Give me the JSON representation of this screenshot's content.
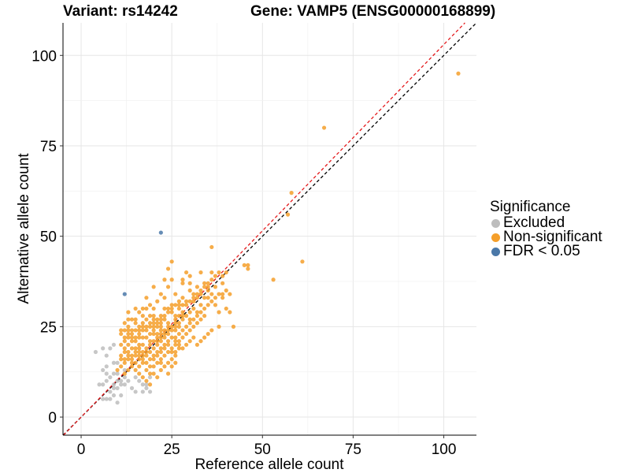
{
  "chart_data": {
    "type": "scatter",
    "title_left": "Variant: rs14242",
    "title_right": "Gene: VAMP5 (ENSG00000168899)",
    "xlabel": "Reference allele count",
    "ylabel": "Alternative allele count",
    "xlim": [
      -5,
      109
    ],
    "ylim": [
      -5,
      109
    ],
    "x_ticks": [
      0,
      25,
      50,
      75,
      100
    ],
    "y_ticks": [
      0,
      25,
      50,
      75,
      100
    ],
    "grid": true,
    "legend": {
      "title": "Significance",
      "position": "right"
    },
    "reference_lines": [
      {
        "name": "identity",
        "slope": 1,
        "intercept": 0,
        "color": "#000000",
        "dash": true
      },
      {
        "name": "fit",
        "slope": 1.03,
        "intercept": 0,
        "color": "#e41a1c",
        "dash": true
      }
    ],
    "series": [
      {
        "name": "Excluded",
        "color": "#bdbdbd",
        "points": [
          [
            4,
            18
          ],
          [
            6,
            19
          ],
          [
            7,
            17
          ],
          [
            8,
            19
          ],
          [
            9,
            20
          ],
          [
            7,
            14
          ],
          [
            6,
            13
          ],
          [
            7,
            12
          ],
          [
            9,
            15
          ],
          [
            10,
            15
          ],
          [
            8,
            11
          ],
          [
            5,
            9
          ],
          [
            6,
            9
          ],
          [
            7,
            10
          ],
          [
            9,
            9
          ],
          [
            10,
            10
          ],
          [
            11,
            9
          ],
          [
            10,
            8
          ],
          [
            9,
            8
          ],
          [
            8,
            7
          ],
          [
            9,
            6
          ],
          [
            6,
            5
          ],
          [
            7,
            5
          ],
          [
            8,
            5
          ],
          [
            10,
            4
          ],
          [
            11,
            6
          ],
          [
            12,
            9
          ],
          [
            14,
            8
          ],
          [
            15,
            7
          ],
          [
            13,
            10
          ],
          [
            10,
            12
          ],
          [
            11,
            10
          ],
          [
            12,
            11
          ],
          [
            15,
            11
          ],
          [
            16,
            10
          ],
          [
            17,
            9
          ],
          [
            18,
            9
          ],
          [
            18,
            8
          ],
          [
            19,
            7
          ],
          [
            17,
            7
          ],
          [
            19,
            11
          ],
          [
            12,
            13
          ],
          [
            9,
            12
          ]
        ]
      },
      {
        "name": "Non-significant",
        "color": "#f59f2a",
        "points": [
          [
            104,
            95
          ],
          [
            67,
            80
          ],
          [
            58,
            62
          ],
          [
            57,
            56
          ],
          [
            61,
            43
          ],
          [
            53,
            38
          ],
          [
            46,
            42
          ],
          [
            46,
            41
          ],
          [
            45,
            42
          ],
          [
            40,
            35
          ],
          [
            41,
            34
          ],
          [
            39,
            34
          ],
          [
            36,
            47
          ],
          [
            36,
            40
          ],
          [
            35,
            35
          ],
          [
            38,
            29
          ],
          [
            40,
            30
          ],
          [
            41,
            29
          ],
          [
            42,
            25
          ],
          [
            38,
            25
          ],
          [
            37,
            31
          ],
          [
            35,
            33
          ],
          [
            34,
            37
          ],
          [
            33,
            40
          ],
          [
            32,
            36
          ],
          [
            31,
            33
          ],
          [
            30,
            37
          ],
          [
            29,
            40
          ],
          [
            28,
            37
          ],
          [
            28,
            33
          ],
          [
            27,
            30
          ],
          [
            27,
            28
          ],
          [
            26,
            25
          ],
          [
            26,
            22
          ],
          [
            25,
            43
          ],
          [
            24,
            41
          ],
          [
            24,
            36
          ],
          [
            23,
            38
          ],
          [
            23,
            33
          ],
          [
            23,
            30
          ],
          [
            22,
            27
          ],
          [
            22,
            25
          ],
          [
            21,
            23
          ],
          [
            21,
            21
          ],
          [
            20,
            36
          ],
          [
            20,
            30
          ],
          [
            20,
            28
          ],
          [
            20,
            25
          ],
          [
            19,
            23
          ],
          [
            19,
            21
          ],
          [
            18,
            19
          ],
          [
            18,
            33
          ],
          [
            18,
            30
          ],
          [
            17,
            28
          ],
          [
            17,
            25
          ],
          [
            17,
            22
          ],
          [
            16,
            20
          ],
          [
            16,
            18
          ],
          [
            15,
            30
          ],
          [
            15,
            27
          ],
          [
            15,
            24
          ],
          [
            15,
            21
          ],
          [
            14,
            19
          ],
          [
            14,
            17
          ],
          [
            13,
            29
          ],
          [
            13,
            24
          ],
          [
            13,
            22
          ],
          [
            13,
            20
          ],
          [
            12,
            18
          ],
          [
            12,
            15
          ],
          [
            11,
            16
          ],
          [
            11,
            14
          ],
          [
            10,
            13
          ],
          [
            12,
            12
          ],
          [
            13,
            13
          ],
          [
            14,
            14
          ],
          [
            15,
            15
          ],
          [
            16,
            16
          ],
          [
            17,
            17
          ],
          [
            18,
            18
          ],
          [
            19,
            16
          ],
          [
            20,
            17
          ],
          [
            21,
            18
          ],
          [
            22,
            19
          ],
          [
            23,
            20
          ],
          [
            24,
            21
          ],
          [
            25,
            19
          ],
          [
            26,
            20
          ],
          [
            27,
            21
          ],
          [
            28,
            22
          ],
          [
            29,
            23
          ],
          [
            30,
            24
          ],
          [
            31,
            25
          ],
          [
            32,
            26
          ],
          [
            33,
            27
          ],
          [
            34,
            28
          ],
          [
            25,
            29
          ],
          [
            26,
            28
          ],
          [
            27,
            26
          ],
          [
            28,
            27
          ],
          [
            24,
            26
          ],
          [
            23,
            24
          ],
          [
            22,
            23
          ],
          [
            21,
            22
          ],
          [
            20,
            21
          ],
          [
            19,
            20
          ],
          [
            18,
            24
          ],
          [
            17,
            20
          ],
          [
            16,
            22
          ],
          [
            15,
            19
          ],
          [
            14,
            21
          ],
          [
            13,
            18
          ],
          [
            12,
            16
          ],
          [
            11,
            17
          ],
          [
            19,
            26
          ],
          [
            20,
            24
          ],
          [
            21,
            25
          ],
          [
            22,
            21
          ],
          [
            23,
            22
          ],
          [
            24,
            23
          ],
          [
            25,
            24
          ],
          [
            26,
            26
          ],
          [
            27,
            25
          ],
          [
            28,
            29
          ],
          [
            29,
            28
          ],
          [
            30,
            27
          ],
          [
            31,
            30
          ],
          [
            32,
            29
          ],
          [
            33,
            31
          ],
          [
            16,
            14
          ],
          [
            17,
            15
          ],
          [
            18,
            13
          ],
          [
            19,
            12
          ],
          [
            20,
            14
          ],
          [
            21,
            15
          ],
          [
            22,
            16
          ],
          [
            23,
            17
          ],
          [
            24,
            18
          ],
          [
            25,
            16
          ],
          [
            26,
            17
          ],
          [
            18,
            10
          ],
          [
            20,
            12
          ],
          [
            22,
            13
          ],
          [
            24,
            12
          ],
          [
            21,
            11
          ],
          [
            19,
            9
          ],
          [
            17,
            11
          ],
          [
            15,
            13
          ],
          [
            16,
            12
          ],
          [
            13,
            16
          ],
          [
            14,
            15
          ],
          [
            15,
            17
          ],
          [
            16,
            19
          ],
          [
            17,
            18
          ],
          [
            18,
            17
          ],
          [
            19,
            18
          ],
          [
            20,
            19
          ],
          [
            21,
            20
          ],
          [
            22,
            22
          ],
          [
            23,
            23
          ],
          [
            24,
            24
          ],
          [
            25,
            25
          ],
          [
            26,
            24
          ],
          [
            27,
            23
          ],
          [
            28,
            24
          ],
          [
            29,
            25
          ],
          [
            30,
            26
          ],
          [
            31,
            27
          ],
          [
            32,
            28
          ],
          [
            33,
            29
          ],
          [
            34,
            30
          ],
          [
            35,
            31
          ],
          [
            36,
            32
          ],
          [
            37,
            33
          ],
          [
            38,
            34
          ],
          [
            39,
            33
          ],
          [
            28,
            38
          ],
          [
            30,
            35
          ],
          [
            32,
            33
          ],
          [
            34,
            33
          ],
          [
            36,
            34
          ],
          [
            37,
            36
          ],
          [
            39,
            37
          ],
          [
            26,
            34
          ],
          [
            25,
            31
          ],
          [
            24,
            30
          ],
          [
            23,
            27
          ],
          [
            22,
            28
          ],
          [
            21,
            26
          ],
          [
            20,
            27
          ],
          [
            19,
            28
          ],
          [
            18,
            27
          ],
          [
            17,
            26
          ],
          [
            16,
            25
          ],
          [
            15,
            26
          ],
          [
            14,
            24
          ],
          [
            13,
            25
          ],
          [
            12,
            24
          ],
          [
            11,
            23
          ],
          [
            12,
            22
          ],
          [
            14,
            22
          ],
          [
            16,
            23
          ],
          [
            18,
            22
          ],
          [
            20,
            23
          ],
          [
            22,
            24
          ],
          [
            24,
            25
          ],
          [
            26,
            27
          ],
          [
            28,
            28
          ],
          [
            30,
            29
          ],
          [
            27,
            32
          ],
          [
            29,
            31
          ],
          [
            31,
            32
          ],
          [
            33,
            34
          ],
          [
            35,
            36
          ],
          [
            30,
            39
          ],
          [
            25,
            38
          ],
          [
            22,
            34
          ],
          [
            21,
            32
          ],
          [
            19,
            31
          ],
          [
            17,
            30
          ],
          [
            16,
            29
          ],
          [
            14,
            27
          ],
          [
            13,
            27
          ],
          [
            12,
            26
          ],
          [
            11,
            24
          ],
          [
            25,
            22
          ],
          [
            26,
            21
          ],
          [
            27,
            20
          ],
          [
            28,
            19
          ],
          [
            29,
            20
          ],
          [
            30,
            21
          ],
          [
            31,
            22
          ],
          [
            32,
            20
          ],
          [
            33,
            21
          ],
          [
            34,
            22
          ],
          [
            35,
            23
          ],
          [
            36,
            24
          ],
          [
            22,
            18
          ],
          [
            23,
            19
          ],
          [
            24,
            20
          ],
          [
            25,
            18
          ],
          [
            26,
            18
          ],
          [
            27,
            19
          ],
          [
            20,
            16
          ],
          [
            21,
            17
          ],
          [
            22,
            15
          ],
          [
            23,
            14
          ],
          [
            24,
            15
          ],
          [
            25,
            14
          ],
          [
            26,
            15
          ],
          [
            19,
            14
          ],
          [
            18,
            15
          ],
          [
            17,
            16
          ],
          [
            16,
            17
          ],
          [
            15,
            18
          ],
          [
            14,
            16
          ],
          [
            13,
            17
          ],
          [
            12,
            19
          ],
          [
            11,
            20
          ],
          [
            12,
            21
          ],
          [
            13,
            23
          ],
          [
            14,
            23
          ],
          [
            15,
            22
          ],
          [
            16,
            24
          ],
          [
            17,
            24
          ],
          [
            18,
            25
          ],
          [
            19,
            25
          ],
          [
            20,
            26
          ],
          [
            21,
            27
          ],
          [
            22,
            26
          ],
          [
            23,
            28
          ],
          [
            24,
            29
          ],
          [
            25,
            30
          ],
          [
            26,
            31
          ],
          [
            27,
            31
          ],
          [
            28,
            31
          ],
          [
            29,
            32
          ],
          [
            30,
            32
          ],
          [
            31,
            34
          ],
          [
            32,
            34
          ],
          [
            33,
            35
          ],
          [
            34,
            36
          ],
          [
            35,
            37
          ],
          [
            36,
            38
          ],
          [
            37,
            39
          ],
          [
            38,
            40
          ],
          [
            39,
            39
          ],
          [
            40,
            40
          ]
        ]
      },
      {
        "name": "FDR < 0.05",
        "color": "#4a78a8",
        "points": [
          [
            22,
            51
          ],
          [
            12,
            34
          ]
        ]
      }
    ]
  }
}
